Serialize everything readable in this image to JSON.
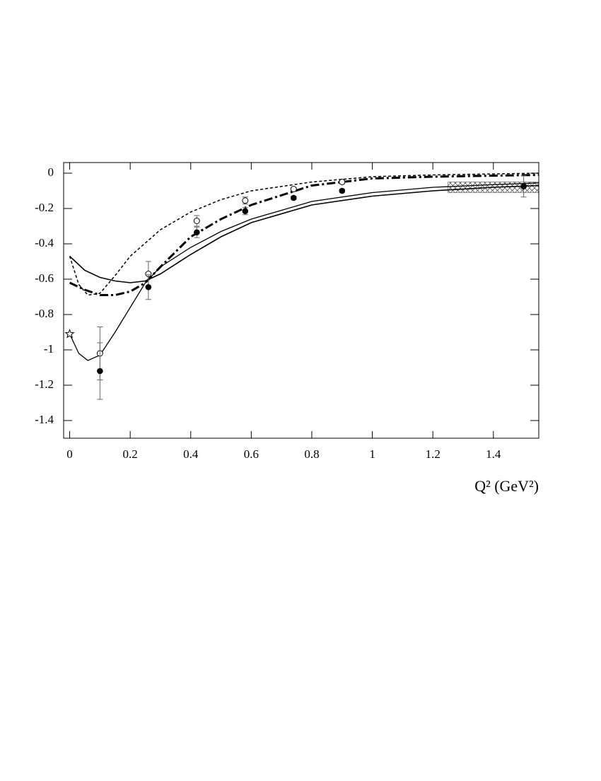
{
  "chart_data": {
    "type": "line",
    "x_label": "Q² (GeV²)",
    "xlim": [
      -0.02,
      1.55
    ],
    "ylim": [
      -1.5,
      0.06
    ],
    "xticks": [
      0,
      0.2,
      0.4,
      0.6,
      0.8,
      1,
      1.2,
      1.4
    ],
    "yticks": [
      0,
      -0.2,
      -0.4,
      -0.6,
      -0.8,
      -1,
      -1.2,
      -1.4
    ],
    "series": [
      {
        "kind": "line",
        "style": "solid",
        "width": 1.6,
        "color": "#000000",
        "x": [
          0,
          0.05,
          0.1,
          0.15,
          0.2,
          0.25,
          0.3,
          0.4,
          0.5,
          0.6,
          0.8,
          1.0,
          1.2,
          1.4,
          1.55
        ],
        "values": [
          -0.47,
          -0.55,
          -0.59,
          -0.61,
          -0.62,
          -0.61,
          -0.57,
          -0.46,
          -0.36,
          -0.28,
          -0.18,
          -0.13,
          -0.1,
          -0.08,
          -0.07
        ]
      },
      {
        "kind": "line",
        "style": "solid",
        "width": 1.3,
        "color": "#000000",
        "x": [
          0,
          0.03,
          0.06,
          0.1,
          0.15,
          0.2,
          0.25,
          0.3,
          0.4,
          0.5,
          0.6,
          0.8,
          1.0,
          1.2,
          1.4,
          1.55
        ],
        "values": [
          -0.91,
          -1.02,
          -1.06,
          -1.03,
          -0.9,
          -0.76,
          -0.62,
          -0.53,
          -0.42,
          -0.33,
          -0.26,
          -0.16,
          -0.11,
          -0.08,
          -0.065,
          -0.055
        ]
      },
      {
        "kind": "line",
        "style": "dashed",
        "width": 1.5,
        "color": "#000000",
        "x": [
          0,
          0.03,
          0.06,
          0.1,
          0.15,
          0.2,
          0.3,
          0.4,
          0.5,
          0.6,
          0.8,
          1.0,
          1.2,
          1.55
        ],
        "values": [
          -0.47,
          -0.63,
          -0.69,
          -0.68,
          -0.58,
          -0.47,
          -0.32,
          -0.22,
          -0.15,
          -0.1,
          -0.05,
          -0.02,
          -0.01,
          0
        ]
      },
      {
        "kind": "line",
        "style": "dashdot",
        "width": 3,
        "color": "#000000",
        "x": [
          0,
          0.05,
          0.1,
          0.15,
          0.2,
          0.25,
          0.3,
          0.4,
          0.5,
          0.6,
          0.8,
          1.0,
          1.2,
          1.55
        ],
        "values": [
          -0.62,
          -0.66,
          -0.69,
          -0.69,
          -0.67,
          -0.62,
          -0.53,
          -0.36,
          -0.26,
          -0.18,
          -0.07,
          -0.03,
          -0.02,
          -0.01
        ]
      },
      {
        "kind": "points",
        "marker": "open-circle",
        "color": "#000000",
        "x": [
          0.1,
          0.26,
          0.42,
          0.58,
          0.74,
          0.9
        ],
        "values": [
          -1.02,
          -0.57,
          -0.27,
          -0.155,
          -0.09,
          -0.05
        ],
        "errors": [
          0.15,
          0.07,
          0.03,
          0.02,
          0.01,
          0.01
        ]
      },
      {
        "kind": "points",
        "marker": "filled-circle",
        "color": "#000000",
        "x": [
          0.1,
          0.26,
          0.42,
          0.58,
          0.74,
          0.9,
          1.5
        ],
        "values": [
          -1.12,
          -0.645,
          -0.335,
          -0.215,
          -0.14,
          -0.1,
          -0.075
        ],
        "errors": [
          0.16,
          0.07,
          0.03,
          0.02,
          0.01,
          0.01,
          0.06
        ]
      },
      {
        "kind": "points",
        "marker": "star",
        "color": "#000000",
        "x": [
          0
        ],
        "values": [
          -0.91
        ],
        "errors": [
          0
        ]
      }
    ],
    "band": {
      "x": [
        1.25,
        1.55
      ],
      "y": [
        -0.11,
        -0.05
      ],
      "color": "#555555"
    }
  }
}
